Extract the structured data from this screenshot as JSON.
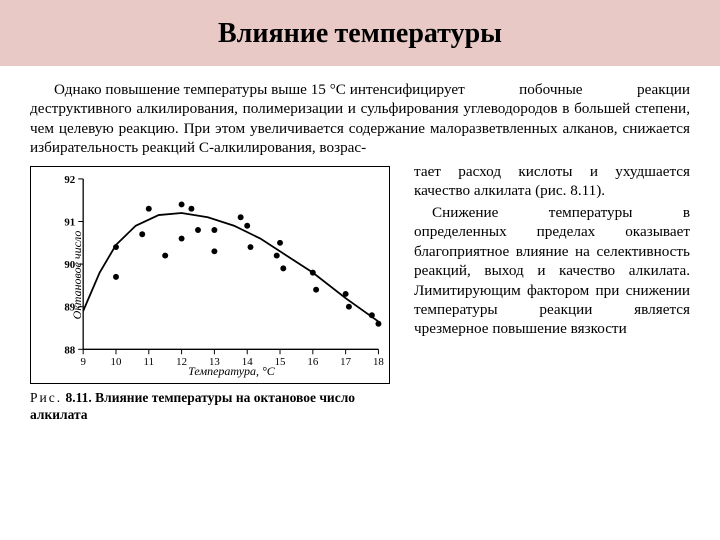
{
  "title": "Влияние температуры",
  "intro": {
    "lead": "Однако повышение температуры выше 15 °C интенсифицирует",
    "rest": " побочные реакции деструктивного алкилирования, полимеризации и сульфирования углеводородов в большей степени, чем целевую реакцию. При этом увеличивается содержание малоразветвленных алканов, снижается избирательность реакций C-алкилирования, возрас-"
  },
  "right": {
    "p1": "тает расход кислоты и ухудшается качество алкилата (рис. 8.11).",
    "p2": "Снижение температуры в определенных пределах оказывает благоприятное влияние на селективность реакций, выход и качество алкилата. Лимитирующим фактором при снижении температуры реакции является чрезмерное повышение вязкости"
  },
  "chart": {
    "type": "scatter-with-curve",
    "xlabel": "Температура, °C",
    "ylabel": "Октановое число",
    "xlim": [
      9,
      18
    ],
    "ylim": [
      88,
      92
    ],
    "xticks": [
      9,
      10,
      11,
      12,
      13,
      14,
      15,
      16,
      17,
      18
    ],
    "yticks": [
      88,
      89,
      90,
      91,
      92
    ],
    "tick_fontsize": 11,
    "label_fontsize": 12,
    "point_color": "#000000",
    "line_color": "#000000",
    "background": "#ffffff",
    "points": [
      [
        10.0,
        89.7
      ],
      [
        10.0,
        90.4
      ],
      [
        10.8,
        90.7
      ],
      [
        11.0,
        91.3
      ],
      [
        11.5,
        90.2
      ],
      [
        12.0,
        90.6
      ],
      [
        12.0,
        91.4
      ],
      [
        12.3,
        91.3
      ],
      [
        12.5,
        90.8
      ],
      [
        13.0,
        90.3
      ],
      [
        13.0,
        90.8
      ],
      [
        13.8,
        91.1
      ],
      [
        14.0,
        90.9
      ],
      [
        14.1,
        90.4
      ],
      [
        14.9,
        90.2
      ],
      [
        15.0,
        90.5
      ],
      [
        15.1,
        89.9
      ],
      [
        16.0,
        89.8
      ],
      [
        16.1,
        89.4
      ],
      [
        17.0,
        89.3
      ],
      [
        17.1,
        89.0
      ],
      [
        17.8,
        88.8
      ],
      [
        18.0,
        88.6
      ]
    ],
    "curve": [
      [
        9.0,
        88.9
      ],
      [
        9.5,
        89.8
      ],
      [
        10.0,
        90.45
      ],
      [
        10.6,
        90.9
      ],
      [
        11.3,
        91.15
      ],
      [
        12.0,
        91.2
      ],
      [
        12.8,
        91.1
      ],
      [
        13.6,
        90.9
      ],
      [
        14.4,
        90.6
      ],
      [
        15.2,
        90.2
      ],
      [
        16.0,
        89.8
      ],
      [
        17.0,
        89.2
      ],
      [
        18.0,
        88.65
      ]
    ],
    "line_width": 1.8,
    "marker_radius": 3
  },
  "caption": {
    "prefix": "Рис.",
    "num": "8.11.",
    "text": "Влияние температуры на октановое число алкилата"
  }
}
